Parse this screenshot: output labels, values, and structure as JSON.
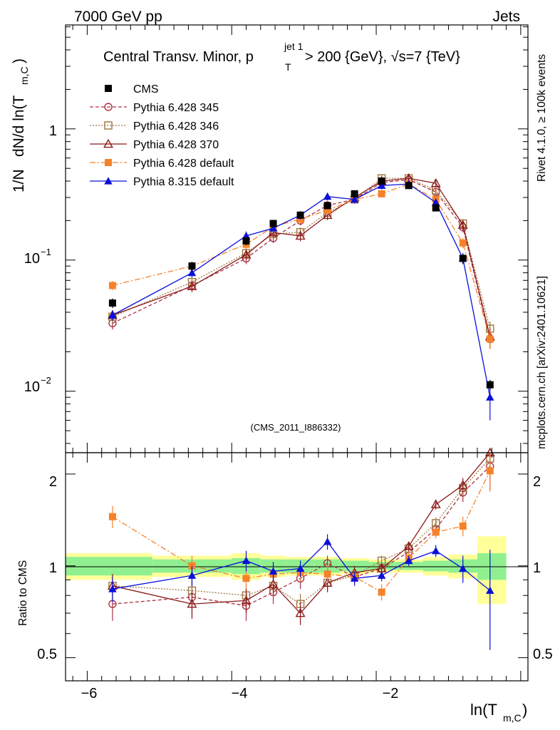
{
  "header": {
    "left": "7000 GeV pp",
    "right": "Jets"
  },
  "side_labels": {
    "rivet": "Rivet 4.1.0, ≥ 100k events",
    "mcplots": "mcplots.cern.ch [arXiv:2401.10621]"
  },
  "title_parts": {
    "main": "Central Transv. Minor, p",
    "sup": "jet 1",
    "sub": "T",
    "rest": " > 200 {GeV}, √s=7 {TeV}"
  },
  "watermark": "(CMS_2011_I886332)",
  "ylabel_parts": {
    "a": "1/N",
    "b": "dN/d ln(T",
    "sub": "m,C",
    "c": ")"
  },
  "xlabel_parts": {
    "a": "ln(T",
    "sub": "m,C",
    "c": ")"
  },
  "ratio_ylabel": "Ratio to CMS",
  "tick_labels": {
    "x": [
      "−6",
      "−4",
      "−2"
    ],
    "main_y": [
      {
        "base": "1",
        "exp": ""
      },
      {
        "base": "10",
        "exp": "−1"
      },
      {
        "base": "10",
        "exp": "−2"
      }
    ],
    "ratio_y": [
      "2",
      "1",
      "0.5"
    ]
  },
  "colors": {
    "cms": "#000000",
    "p345": "#aa3344",
    "p346": "#a07840",
    "p370": "#8b1a1a",
    "p6def": "#f5822a",
    "p8def": "#0a10d8",
    "band_inner": "#90f090",
    "band_outer": "#ffff99"
  },
  "chart_data": {
    "type": "scatter",
    "x": [
      -5.65,
      -4.55,
      -3.8,
      -3.425,
      -3.05,
      -2.675,
      -2.3,
      -1.925,
      -1.55,
      -1.175,
      -0.8,
      -0.425
    ],
    "xlim": [
      -6.3,
      0.1
    ],
    "xticks": [
      -6,
      -4,
      -2
    ],
    "ylim": [
      0.0034,
      6.2
    ],
    "ratio_ylim": [
      0.42,
      2.35
    ],
    "ratio_yticks": [
      2,
      1,
      0.5
    ],
    "cms_band": {
      "edges": [
        -6.3,
        -5.1,
        -4.0,
        -3.6,
        -3.25,
        -2.85,
        -2.5,
        -2.1,
        -1.75,
        -1.35,
        -1.0,
        -0.6,
        -0.2
      ],
      "inner": [
        0.07,
        0.05,
        0.06,
        0.05,
        0.05,
        0.05,
        0.04,
        0.03,
        0.03,
        0.04,
        0.05,
        0.1
      ],
      "outer": [
        0.1,
        0.08,
        0.1,
        0.08,
        0.07,
        0.07,
        0.06,
        0.05,
        0.05,
        0.07,
        0.09,
        0.25
      ]
    },
    "series": [
      {
        "name": "CMS",
        "key": "cms",
        "marker": "square-filled",
        "dash": "none",
        "values": [
          0.047,
          0.09,
          0.14,
          0.19,
          0.22,
          0.26,
          0.32,
          0.4,
          0.37,
          0.25,
          0.103,
          0.0112
        ],
        "errors": [
          0.004,
          0.007,
          0.01,
          0.012,
          0.013,
          0.015,
          0.018,
          0.02,
          0.02,
          0.015,
          0.008,
          0.001
        ],
        "ratio": [
          1,
          1,
          1,
          1,
          1,
          1,
          1,
          1,
          1,
          1,
          1,
          1
        ]
      },
      {
        "name": "Pythia 6.428 345",
        "key": "p345",
        "marker": "circle-open",
        "dash": "5,3",
        "values": [
          0.033,
          0.064,
          0.103,
          0.147,
          0.2,
          0.261,
          0.29,
          0.39,
          0.41,
          0.33,
          0.178,
          0.025
        ],
        "errors": [
          0.0035,
          0.006,
          0.01,
          0.012,
          0.016,
          0.02,
          0.02,
          0.025,
          0.025,
          0.022,
          0.015,
          0.004
        ],
        "ratio": [
          0.75,
          0.79,
          0.74,
          0.82,
          0.91,
          1.02,
          0.92,
          0.98,
          1.11,
          1.32,
          1.74,
          2.12
        ],
        "ratio_err": [
          0.09,
          0.1,
          0.08,
          0.07,
          0.07,
          0.06,
          0.05,
          0.05,
          0.05,
          0.06,
          0.12,
          0.35
        ]
      },
      {
        "name": "Pythia 6.428 346",
        "key": "p346",
        "marker": "square-open",
        "dash": "2,2",
        "values": [
          0.037,
          0.068,
          0.113,
          0.158,
          0.163,
          0.23,
          0.29,
          0.42,
          0.42,
          0.34,
          0.19,
          0.03
        ],
        "errors": [
          0.0035,
          0.006,
          0.01,
          0.012,
          0.014,
          0.018,
          0.02,
          0.025,
          0.025,
          0.022,
          0.015,
          0.004
        ],
        "ratio": [
          0.86,
          0.83,
          0.8,
          0.86,
          0.75,
          0.88,
          0.93,
          1.04,
          1.14,
          1.38,
          1.8,
          2.25
        ],
        "ratio_err": [
          0.08,
          0.08,
          0.07,
          0.07,
          0.06,
          0.06,
          0.05,
          0.04,
          0.04,
          0.06,
          0.1,
          0.35
        ]
      },
      {
        "name": "Pythia 6.428 370",
        "key": "p370",
        "marker": "triangle-open",
        "dash": "none",
        "values": [
          0.038,
          0.063,
          0.11,
          0.162,
          0.153,
          0.22,
          0.3,
          0.4,
          0.42,
          0.385,
          0.185,
          0.026
        ],
        "errors": [
          0.0035,
          0.006,
          0.01,
          0.012,
          0.014,
          0.018,
          0.02,
          0.025,
          0.025,
          0.022,
          0.015,
          0.004
        ],
        "ratio": [
          0.86,
          0.75,
          0.77,
          0.87,
          0.7,
          0.88,
          0.95,
          0.98,
          1.16,
          1.59,
          1.84,
          2.35
        ],
        "ratio_err": [
          0.08,
          0.08,
          0.07,
          0.07,
          0.06,
          0.06,
          0.05,
          0.04,
          0.04,
          0.06,
          0.1,
          0.35
        ]
      },
      {
        "name": "Pythia 6.428 default",
        "key": "p6def",
        "marker": "square-filled",
        "dash": "8,3,2,3",
        "values": [
          0.064,
          0.09,
          0.132,
          0.18,
          0.205,
          0.24,
          0.29,
          0.32,
          0.38,
          0.29,
          0.135,
          0.025
        ],
        "errors": [
          0.005,
          0.007,
          0.01,
          0.012,
          0.015,
          0.018,
          0.02,
          0.02,
          0.025,
          0.02,
          0.012,
          0.004
        ],
        "ratio": [
          1.45,
          1.0,
          0.91,
          0.94,
          0.95,
          0.94,
          0.92,
          0.82,
          1.06,
          1.29,
          1.35,
          2.05
        ],
        "ratio_err": [
          0.12,
          0.08,
          0.07,
          0.07,
          0.06,
          0.06,
          0.05,
          0.05,
          0.05,
          0.06,
          0.1,
          0.3
        ]
      },
      {
        "name": "Pythia 8.315 default",
        "key": "p8def",
        "marker": "triangle-filled",
        "dash": "none",
        "values": [
          0.038,
          0.08,
          0.153,
          0.175,
          0.22,
          0.305,
          0.29,
          0.37,
          0.38,
          0.275,
          0.103,
          0.009
        ],
        "errors": [
          0.0035,
          0.006,
          0.012,
          0.013,
          0.016,
          0.02,
          0.02,
          0.025,
          0.025,
          0.02,
          0.01,
          0.003
        ],
        "ratio": [
          0.84,
          0.93,
          1.04,
          0.96,
          0.98,
          1.2,
          0.91,
          0.93,
          1.04,
          1.12,
          0.98,
          0.83
        ],
        "ratio_err": [
          0.08,
          0.07,
          0.08,
          0.07,
          0.06,
          0.07,
          0.05,
          0.04,
          0.04,
          0.05,
          0.1,
          0.3
        ]
      }
    ]
  }
}
